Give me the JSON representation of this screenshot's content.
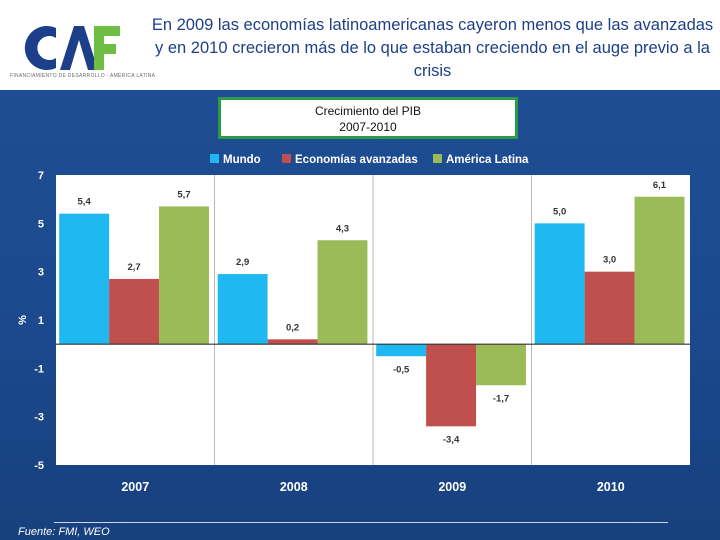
{
  "header": {
    "logo_text": "CAF",
    "logo_tagline": "FINANCIAMIENTO DE DESARROLLO · AMÉRICA LATINA",
    "title": "En 2009 las economías latinoamericanas cayeron menos que las avanzadas y en 2010 crecieron más de lo que estaban creciendo en el auge previo a la crisis"
  },
  "chart_box": {
    "line1": "Crecimiento del PIB",
    "line2": "2007-2010"
  },
  "colors": {
    "series": [
      "#1fb8f0",
      "#c0504d",
      "#9bbb59"
    ],
    "axis_text": "#ffffff",
    "plot_bg": "#ffffff",
    "logo_blue": "#1d3f8a",
    "logo_green": "#6fbe44"
  },
  "chart_data": {
    "type": "bar",
    "title": "Crecimiento del PIB 2007-2010",
    "categories": [
      "2007",
      "2008",
      "2009",
      "2010"
    ],
    "series": [
      {
        "name": "Mundo",
        "values": [
          5.4,
          2.9,
          -0.5,
          5.0
        ],
        "labels": [
          "5,4",
          "2,9",
          "-0,5",
          "5,0"
        ]
      },
      {
        "name": "Economías avanzadas",
        "values": [
          2.7,
          0.2,
          -3.4,
          3.0
        ],
        "labels": [
          "2,7",
          "0,2",
          "-3,4",
          "3,0"
        ]
      },
      {
        "name": "América Latina",
        "values": [
          5.7,
          4.3,
          -1.7,
          6.1
        ],
        "labels": [
          "5,7",
          "4,3",
          "-1,7",
          "6,1"
        ]
      }
    ],
    "ylabel": "%",
    "xlabel": "",
    "ylim": [
      -5,
      7
    ],
    "yticks": [
      7,
      5,
      3,
      1,
      -1,
      -3,
      -5
    ],
    "ytick_labels": [
      "7",
      "5",
      "3",
      "1",
      "-1",
      "-3",
      "-5"
    ],
    "legend_position": "top",
    "grid": false
  },
  "source": "Fuente: FMI, WEO"
}
